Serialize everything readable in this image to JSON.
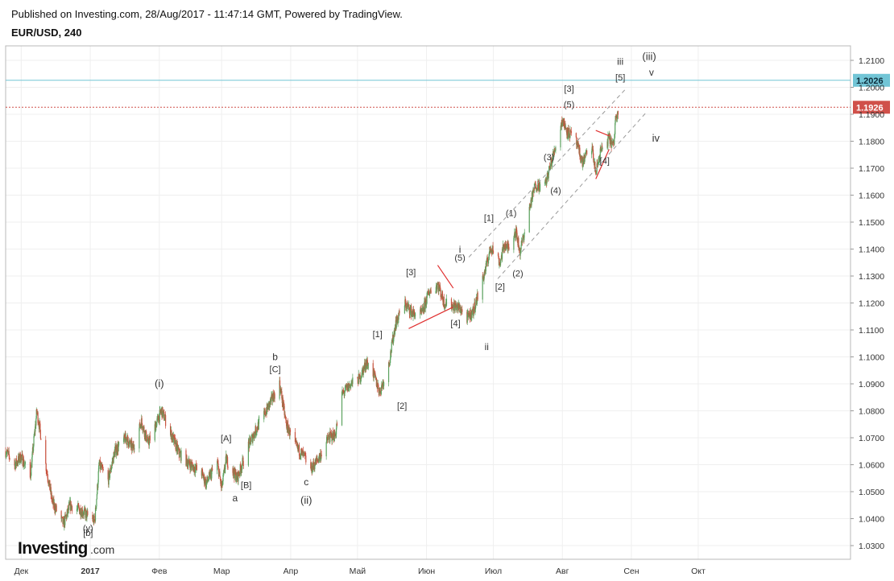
{
  "header": {
    "published": "Published on Investing.com, 28/Aug/2017 - 11:47:14 GMT, Powered by TradingView.",
    "symbol": "EUR/USD, 240"
  },
  "watermark": {
    "brand": "Investing",
    "suffix": ".com"
  },
  "chart_data": {
    "type": "candlestick",
    "symbol": "EUR/USD",
    "interval": "240",
    "ylim": [
      1.025,
      1.2125
    ],
    "y_ticks": [
      "1.0300",
      "1.0400",
      "1.0500",
      "1.0600",
      "1.0700",
      "1.0800",
      "1.0900",
      "1.1000",
      "1.1100",
      "1.1200",
      "1.1300",
      "1.1400",
      "1.1500",
      "1.1600",
      "1.1700",
      "1.1800",
      "1.1900",
      "1.2000",
      "1.2100"
    ],
    "x_ticks": [
      "Дек",
      "2017",
      "Фев",
      "Мар",
      "Апр",
      "Май",
      "Июн",
      "Июл",
      "Авг",
      "Сен",
      "Окт"
    ],
    "grid": true,
    "colors": {
      "up": "#5ba25e",
      "down": "#c8523e",
      "price": "#d0504a",
      "level": "#72c5d6",
      "channel": "#9a9a9a",
      "wedge": "#e03030"
    },
    "price_levels": [
      {
        "label": "1.2026",
        "value": 1.2026,
        "style": "solid",
        "color": "#72c5d6"
      },
      {
        "label": "1.1926",
        "value": 1.1926,
        "style": "dotted",
        "color": "#d0504a"
      }
    ],
    "series_path": [
      [
        "2016-11-24",
        1.065
      ],
      [
        "2016-11-28",
        1.06
      ],
      [
        "2016-12-01",
        1.063
      ],
      [
        "2016-12-05",
        1.055
      ],
      [
        "2016-12-08",
        1.08
      ],
      [
        "2016-12-12",
        1.06
      ],
      [
        "2016-12-15",
        1.046
      ],
      [
        "2016-12-20",
        1.038
      ],
      [
        "2016-12-23",
        1.045
      ],
      [
        "2016-12-28",
        1.043
      ],
      [
        "2017-01-03",
        1.039
      ],
      [
        "2017-01-05",
        1.06
      ],
      [
        "2017-01-09",
        1.054
      ],
      [
        "2017-01-12",
        1.065
      ],
      [
        "2017-01-17",
        1.07
      ],
      [
        "2017-01-20",
        1.066
      ],
      [
        "2017-01-24",
        1.076
      ],
      [
        "2017-01-27",
        1.068
      ],
      [
        "2017-02-02",
        1.08
      ],
      [
        "2017-02-06",
        1.072
      ],
      [
        "2017-02-10",
        1.064
      ],
      [
        "2017-02-15",
        1.06
      ],
      [
        "2017-02-20",
        1.057
      ],
      [
        "2017-02-22",
        1.053
      ],
      [
        "2017-02-27",
        1.061
      ],
      [
        "2017-03-01",
        1.051
      ],
      [
        "2017-03-03",
        1.062
      ],
      [
        "2017-03-08",
        1.055
      ],
      [
        "2017-03-13",
        1.067
      ],
      [
        "2017-03-17",
        1.074
      ],
      [
        "2017-03-21",
        1.08
      ],
      [
        "2017-03-24",
        1.085
      ],
      [
        "2017-03-27",
        1.09
      ],
      [
        "2017-03-30",
        1.075
      ],
      [
        "2017-04-03",
        1.067
      ],
      [
        "2017-04-07",
        1.063
      ],
      [
        "2017-04-10",
        1.058
      ],
      [
        "2017-04-14",
        1.063
      ],
      [
        "2017-04-18",
        1.07
      ],
      [
        "2017-04-21",
        1.071
      ],
      [
        "2017-04-24",
        1.086
      ],
      [
        "2017-04-28",
        1.09
      ],
      [
        "2017-05-02",
        1.092
      ],
      [
        "2017-05-05",
        1.098
      ],
      [
        "2017-05-08",
        1.094
      ],
      [
        "2017-05-11",
        1.087
      ],
      [
        "2017-05-15",
        1.097
      ],
      [
        "2017-05-18",
        1.112
      ],
      [
        "2017-05-22",
        1.12
      ],
      [
        "2017-05-26",
        1.116
      ],
      [
        "2017-05-30",
        1.116
      ],
      [
        "2017-06-02",
        1.124
      ],
      [
        "2017-06-06",
        1.127
      ],
      [
        "2017-06-09",
        1.12
      ],
      [
        "2017-06-13",
        1.119
      ],
      [
        "2017-06-16",
        1.118
      ],
      [
        "2017-06-19",
        1.114
      ],
      [
        "2017-06-22",
        1.117
      ],
      [
        "2017-06-27",
        1.131
      ],
      [
        "2017-06-30",
        1.141
      ],
      [
        "2017-07-04",
        1.135
      ],
      [
        "2017-07-06",
        1.142
      ],
      [
        "2017-07-07",
        1.14
      ],
      [
        "2017-07-11",
        1.147
      ],
      [
        "2017-07-13",
        1.139
      ],
      [
        "2017-07-18",
        1.158
      ],
      [
        "2017-07-20",
        1.164
      ],
      [
        "2017-07-24",
        1.163
      ],
      [
        "2017-07-27",
        1.172
      ],
      [
        "2017-08-01",
        1.188
      ],
      [
        "2017-08-03",
        1.184
      ],
      [
        "2017-08-07",
        1.18
      ],
      [
        "2017-08-10",
        1.172
      ],
      [
        "2017-08-14",
        1.179
      ],
      [
        "2017-08-16",
        1.168
      ],
      [
        "2017-08-18",
        1.176
      ],
      [
        "2017-08-22",
        1.181
      ],
      [
        "2017-08-24",
        1.178
      ],
      [
        "2017-08-25",
        1.19
      ],
      [
        "2017-08-28",
        1.1926
      ]
    ],
    "channel_lines": [
      {
        "from": [
          "2017-06-20",
          1.137
        ],
        "to": [
          "2017-08-29",
          1.199
        ]
      },
      {
        "from": [
          "2017-07-03",
          1.129
        ],
        "to": [
          "2017-09-08",
          1.191
        ]
      }
    ],
    "wedge_lines": [
      {
        "from": [
          "2017-05-24",
          1.1105
        ],
        "to": [
          "2017-06-13",
          1.1185
        ]
      },
      {
        "from": [
          "2017-06-06",
          1.134
        ],
        "to": [
          "2017-06-13",
          1.1255
        ]
      },
      {
        "from": [
          "2017-08-16",
          1.184
        ],
        "to": [
          "2017-08-22",
          1.182
        ]
      },
      {
        "from": [
          "2017-08-16",
          1.166
        ],
        "to": [
          "2017-08-22",
          1.177
        ]
      }
    ],
    "wave_labels": [
      {
        "text": "(i)",
        "x": "2017-02-01",
        "y": 1.0888,
        "size": 13
      },
      {
        "text": "[A]",
        "x": "2017-03-03",
        "y": 1.0686,
        "size": 11
      },
      {
        "text": "[B]",
        "x": "2017-03-12",
        "y": 1.0513,
        "size": 11
      },
      {
        "text": "a",
        "x": "2017-03-07",
        "y": 1.0464,
        "size": 12
      },
      {
        "text": "b",
        "x": "2017-03-25",
        "y": 1.0988,
        "size": 12
      },
      {
        "text": "[C]",
        "x": "2017-03-25",
        "y": 1.0943,
        "size": 11
      },
      {
        "text": "c",
        "x": "2017-04-08",
        "y": 1.0524,
        "size": 12
      },
      {
        "text": "(ii)",
        "x": "2017-04-08",
        "y": 1.0455,
        "size": 13
      },
      {
        "text": "(y)",
        "x": "2016-12-31",
        "y": 1.0354,
        "size": 11
      },
      {
        "text": "[b]",
        "x": "2016-12-31",
        "y": 1.0336,
        "size": 11
      },
      {
        "text": "[1]",
        "x": "2017-05-10",
        "y": 1.1073,
        "size": 11
      },
      {
        "text": "[2]",
        "x": "2017-05-21",
        "y": 1.0808,
        "size": 11
      },
      {
        "text": "[3]",
        "x": "2017-05-25",
        "y": 1.1303,
        "size": 11
      },
      {
        "text": "i",
        "x": "2017-06-16",
        "y": 1.1387,
        "size": 12
      },
      {
        "text": "(5)",
        "x": "2017-06-16",
        "y": 1.1357,
        "size": 11
      },
      {
        "text": "[4]",
        "x": "2017-06-14",
        "y": 1.1114,
        "size": 11
      },
      {
        "text": "ii",
        "x": "2017-06-28",
        "y": 1.1025,
        "size": 12
      },
      {
        "text": "[1]",
        "x": "2017-06-29",
        "y": 1.1505,
        "size": 11
      },
      {
        "text": "(1)",
        "x": "2017-07-09",
        "y": 1.1522,
        "size": 11
      },
      {
        "text": "[2]",
        "x": "2017-07-04",
        "y": 1.1249,
        "size": 11
      },
      {
        "text": "(2)",
        "x": "2017-07-12",
        "y": 1.1298,
        "size": 11
      },
      {
        "text": "(3)",
        "x": "2017-07-26",
        "y": 1.173,
        "size": 11
      },
      {
        "text": "(4)",
        "x": "2017-07-29",
        "y": 1.1606,
        "size": 11
      },
      {
        "text": "[3]",
        "x": "2017-08-04",
        "y": 1.1984,
        "size": 11
      },
      {
        "text": "(5)",
        "x": "2017-08-04",
        "y": 1.1925,
        "size": 11
      },
      {
        "text": "[4]",
        "x": "2017-08-20",
        "y": 1.1716,
        "size": 11
      },
      {
        "text": "iii",
        "x": "2017-08-27",
        "y": 1.2084,
        "size": 12
      },
      {
        "text": "[5]",
        "x": "2017-08-27",
        "y": 1.2026,
        "size": 11
      },
      {
        "text": "(iii)",
        "x": "2017-09-09",
        "y": 1.2101,
        "size": 13
      },
      {
        "text": "v",
        "x": "2017-09-10",
        "y": 1.2043,
        "size": 12
      },
      {
        "text": "iv",
        "x": "2017-09-12",
        "y": 1.1798,
        "size": 13
      }
    ]
  }
}
